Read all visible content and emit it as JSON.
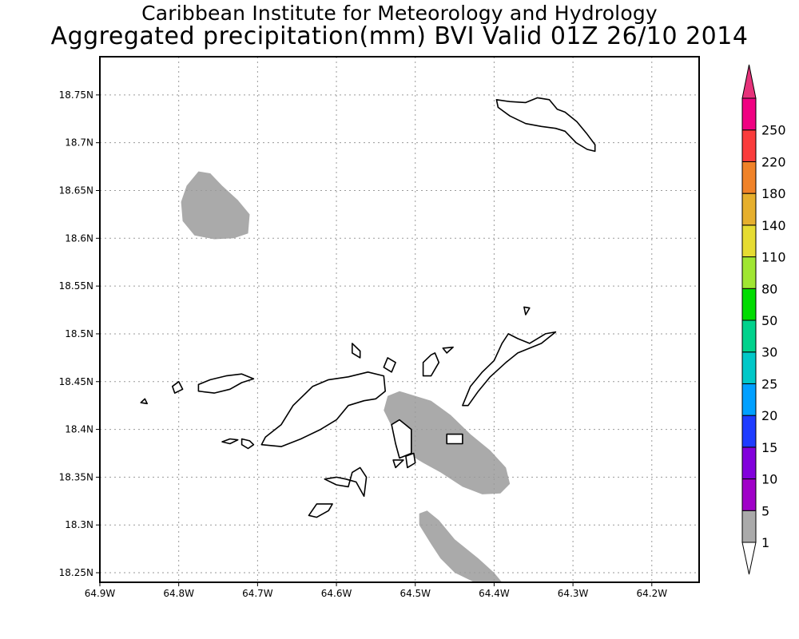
{
  "title": {
    "line1": "Caribbean Institute for Meteorology and Hydrology",
    "line2": "Aggregated precipitation(mm) BVI Valid 01Z 26/10 2014"
  },
  "map": {
    "lon_range": [
      -64.9,
      -64.14
    ],
    "lat_range": [
      18.24,
      18.79
    ],
    "lon_ticks": [
      {
        "v": -64.9,
        "label": "64.9W"
      },
      {
        "v": -64.8,
        "label": "64.8W"
      },
      {
        "v": -64.7,
        "label": "64.7W"
      },
      {
        "v": -64.6,
        "label": "64.6W"
      },
      {
        "v": -64.5,
        "label": "64.5W"
      },
      {
        "v": -64.4,
        "label": "64.4W"
      },
      {
        "v": -64.3,
        "label": "64.3W"
      },
      {
        "v": -64.2,
        "label": "64.2W"
      }
    ],
    "lat_ticks": [
      {
        "v": 18.25,
        "label": "18.25N"
      },
      {
        "v": 18.3,
        "label": "18.3N"
      },
      {
        "v": 18.35,
        "label": "18.35N"
      },
      {
        "v": 18.4,
        "label": "18.4N"
      },
      {
        "v": 18.45,
        "label": "18.45N"
      },
      {
        "v": 18.5,
        "label": "18.5N"
      },
      {
        "v": 18.55,
        "label": "18.55N"
      },
      {
        "v": 18.6,
        "label": "18.6N"
      },
      {
        "v": 18.65,
        "label": "18.65N"
      },
      {
        "v": 18.7,
        "label": "18.7N"
      },
      {
        "v": 18.75,
        "label": "18.75N"
      }
    ],
    "grid": true,
    "precip_areas": [
      {
        "level": "1",
        "color": "#aaaaaa",
        "outline": [
          [
            -64.79,
            18.655
          ],
          [
            -64.775,
            18.67
          ],
          [
            -64.76,
            18.668
          ],
          [
            -64.745,
            18.655
          ],
          [
            -64.725,
            18.64
          ],
          [
            -64.71,
            18.625
          ],
          [
            -64.712,
            18.605
          ],
          [
            -64.73,
            18.6
          ],
          [
            -64.755,
            18.599
          ],
          [
            -64.78,
            18.603
          ],
          [
            -64.795,
            18.618
          ],
          [
            -64.797,
            18.638
          ]
        ]
      },
      {
        "level": "1",
        "color": "#aaaaaa",
        "outline": [
          [
            -64.535,
            18.435
          ],
          [
            -64.52,
            18.44
          ],
          [
            -64.48,
            18.43
          ],
          [
            -64.455,
            18.415
          ],
          [
            -64.43,
            18.395
          ],
          [
            -64.405,
            18.378
          ],
          [
            -64.385,
            18.36
          ],
          [
            -64.38,
            18.343
          ],
          [
            -64.392,
            18.333
          ],
          [
            -64.415,
            18.332
          ],
          [
            -64.44,
            18.34
          ],
          [
            -64.468,
            18.355
          ],
          [
            -64.49,
            18.365
          ],
          [
            -64.51,
            18.375
          ],
          [
            -64.528,
            18.4
          ],
          [
            -64.54,
            18.42
          ]
        ]
      },
      {
        "level": "1",
        "color": "#aaaaaa",
        "outline": [
          [
            -64.495,
            18.3
          ],
          [
            -64.495,
            18.312
          ],
          [
            -64.485,
            18.315
          ],
          [
            -64.47,
            18.305
          ],
          [
            -64.45,
            18.285
          ],
          [
            -64.42,
            18.265
          ],
          [
            -64.4,
            18.25
          ],
          [
            -64.39,
            18.24
          ],
          [
            -64.425,
            18.24
          ],
          [
            -64.45,
            18.25
          ],
          [
            -64.468,
            18.265
          ],
          [
            -64.48,
            18.28
          ]
        ]
      }
    ],
    "islands": [
      {
        "name": "",
        "outline": [
          [
            -64.33,
            18.745
          ],
          [
            -64.32,
            18.735
          ],
          [
            -64.31,
            18.732
          ],
          [
            -64.295,
            18.722
          ],
          [
            -64.283,
            18.71
          ],
          [
            -64.272,
            18.698
          ],
          [
            -64.272,
            18.691
          ],
          [
            -64.282,
            18.693
          ],
          [
            -64.296,
            18.7
          ],
          [
            -64.31,
            18.712
          ],
          [
            -64.322,
            18.715
          ],
          [
            -64.34,
            18.717
          ],
          [
            -64.36,
            18.72
          ],
          [
            -64.38,
            18.728
          ],
          [
            -64.395,
            18.737
          ],
          [
            -64.397,
            18.745
          ],
          [
            -64.38,
            18.743
          ],
          [
            -64.36,
            18.742
          ],
          [
            -64.345,
            18.747
          ]
        ]
      },
      {
        "name": "",
        "outline": [
          [
            -64.695,
            18.384
          ],
          [
            -64.69,
            18.392
          ],
          [
            -64.67,
            18.405
          ],
          [
            -64.655,
            18.425
          ],
          [
            -64.63,
            18.445
          ],
          [
            -64.61,
            18.452
          ],
          [
            -64.585,
            18.455
          ],
          [
            -64.56,
            18.46
          ],
          [
            -64.54,
            18.456
          ],
          [
            -64.538,
            18.44
          ],
          [
            -64.55,
            18.432
          ],
          [
            -64.565,
            18.43
          ],
          [
            -64.585,
            18.425
          ],
          [
            -64.6,
            18.41
          ],
          [
            -64.62,
            18.4
          ],
          [
            -64.645,
            18.39
          ],
          [
            -64.67,
            18.382
          ]
        ]
      },
      {
        "name": "",
        "outline": [
          [
            -64.775,
            18.447
          ],
          [
            -64.76,
            18.452
          ],
          [
            -64.74,
            18.456
          ],
          [
            -64.72,
            18.458
          ],
          [
            -64.705,
            18.453
          ],
          [
            -64.72,
            18.449
          ],
          [
            -64.735,
            18.442
          ],
          [
            -64.755,
            18.438
          ],
          [
            -64.775,
            18.44
          ]
        ]
      },
      {
        "name": "",
        "outline": [
          [
            -64.44,
            18.425
          ],
          [
            -64.43,
            18.445
          ],
          [
            -64.415,
            18.46
          ],
          [
            -64.4,
            18.472
          ],
          [
            -64.39,
            18.49
          ],
          [
            -64.382,
            18.5
          ],
          [
            -64.37,
            18.495
          ],
          [
            -64.355,
            18.49
          ],
          [
            -64.335,
            18.5
          ],
          [
            -64.322,
            18.502
          ],
          [
            -64.34,
            18.49
          ],
          [
            -64.37,
            18.48
          ],
          [
            -64.385,
            18.47
          ],
          [
            -64.405,
            18.455
          ],
          [
            -64.42,
            18.44
          ],
          [
            -64.433,
            18.425
          ]
        ]
      },
      {
        "name": "",
        "outline": [
          [
            -64.58,
            18.355
          ],
          [
            -64.57,
            18.36
          ],
          [
            -64.562,
            18.35
          ],
          [
            -64.565,
            18.33
          ],
          [
            -64.575,
            18.345
          ],
          [
            -64.588,
            18.348
          ],
          [
            -64.6,
            18.35
          ],
          [
            -64.615,
            18.348
          ],
          [
            -64.6,
            18.342
          ],
          [
            -64.585,
            18.34
          ]
        ]
      },
      {
        "name": "",
        "outline": [
          [
            -64.625,
            18.322
          ],
          [
            -64.605,
            18.322
          ],
          [
            -64.61,
            18.315
          ],
          [
            -64.625,
            18.308
          ],
          [
            -64.635,
            18.31
          ]
        ]
      },
      {
        "name": "",
        "outline": [
          [
            -64.53,
            18.405
          ],
          [
            -64.52,
            18.41
          ],
          [
            -64.505,
            18.4
          ],
          [
            -64.505,
            18.375
          ],
          [
            -64.52,
            18.37
          ],
          [
            -64.525,
            18.385
          ]
        ]
      },
      {
        "name": "",
        "outline": [
          [
            -64.49,
            18.47
          ],
          [
            -64.48,
            18.478
          ],
          [
            -64.475,
            18.48
          ],
          [
            -64.47,
            18.47
          ],
          [
            -64.48,
            18.456
          ],
          [
            -64.49,
            18.456
          ]
        ]
      },
      {
        "name": "",
        "outline": [
          [
            -64.46,
            18.395
          ],
          [
            -64.44,
            18.395
          ],
          [
            -64.44,
            18.385
          ],
          [
            -64.46,
            18.385
          ]
        ]
      },
      {
        "name": "",
        "outline": [
          [
            -64.72,
            18.39
          ],
          [
            -64.71,
            18.388
          ],
          [
            -64.705,
            18.384
          ],
          [
            -64.712,
            18.38
          ],
          [
            -64.72,
            18.384
          ]
        ]
      },
      {
        "name": "",
        "outline": [
          [
            -64.725,
            18.389
          ],
          [
            -64.735,
            18.385
          ],
          [
            -64.745,
            18.387
          ],
          [
            -64.735,
            18.39
          ]
        ]
      },
      {
        "name": "",
        "outline": [
          [
            -64.8,
            18.45
          ],
          [
            -64.795,
            18.442
          ],
          [
            -64.805,
            18.438
          ],
          [
            -64.808,
            18.445
          ]
        ]
      },
      {
        "name": "",
        "outline": [
          [
            -64.843,
            18.432
          ],
          [
            -64.84,
            18.427
          ],
          [
            -64.848,
            18.428
          ]
        ]
      },
      {
        "name": "",
        "outline": [
          [
            -64.58,
            18.49
          ],
          [
            -64.57,
            18.482
          ],
          [
            -64.57,
            18.475
          ],
          [
            -64.58,
            18.48
          ]
        ]
      },
      {
        "name": "",
        "outline": [
          [
            -64.535,
            18.475
          ],
          [
            -64.525,
            18.47
          ],
          [
            -64.53,
            18.46
          ],
          [
            -64.54,
            18.465
          ]
        ]
      },
      {
        "name": "",
        "outline": [
          [
            -64.51,
            18.36
          ],
          [
            -64.5,
            18.365
          ],
          [
            -64.502,
            18.375
          ],
          [
            -64.512,
            18.372
          ]
        ]
      },
      {
        "name": "",
        "outline": [
          [
            -64.525,
            18.36
          ],
          [
            -64.515,
            18.368
          ],
          [
            -64.528,
            18.368
          ]
        ]
      },
      {
        "name": "",
        "outline": [
          [
            -64.465,
            18.485
          ],
          [
            -64.452,
            18.486
          ],
          [
            -64.46,
            18.48
          ]
        ]
      },
      {
        "name": "",
        "outline": [
          [
            -64.36,
            18.52
          ],
          [
            -64.355,
            18.527
          ],
          [
            -64.362,
            18.528
          ]
        ]
      }
    ]
  },
  "colorbar": {
    "levels": [
      {
        "label": "1",
        "color": "#aaaaaa"
      },
      {
        "label": "5",
        "color": "#a000c8"
      },
      {
        "label": "10",
        "color": "#8200dc"
      },
      {
        "label": "15",
        "color": "#1e3cff"
      },
      {
        "label": "20",
        "color": "#00a0ff"
      },
      {
        "label": "25",
        "color": "#00c8c8"
      },
      {
        "label": "30",
        "color": "#00d28c"
      },
      {
        "label": "50",
        "color": "#00dc00"
      },
      {
        "label": "80",
        "color": "#a0e632"
      },
      {
        "label": "110",
        "color": "#e6dc32"
      },
      {
        "label": "140",
        "color": "#e6af2d"
      },
      {
        "label": "180",
        "color": "#f08228"
      },
      {
        "label": "220",
        "color": "#fa3c3c"
      },
      {
        "label": "250",
        "color": "#f00082"
      }
    ],
    "top_color": "#e6327a"
  }
}
